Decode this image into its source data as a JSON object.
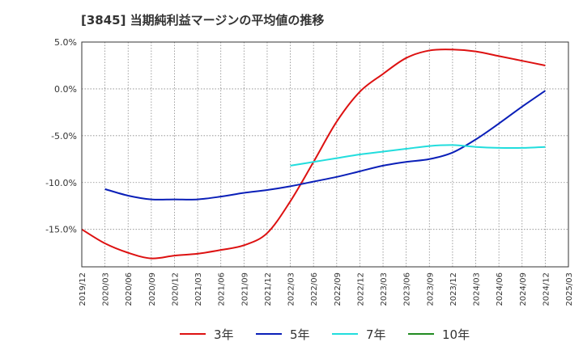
{
  "chart_data": {
    "type": "line",
    "title": "[3845]  当期純利益マージンの平均値の推移",
    "xlabel": "",
    "ylabel": "",
    "x_tick_labels": [
      "2019/12",
      "2020/03",
      "2020/06",
      "2020/09",
      "2020/12",
      "2021/03",
      "2021/06",
      "2021/09",
      "2021/12",
      "2022/03",
      "2022/06",
      "2022/09",
      "2022/12",
      "2023/03",
      "2023/06",
      "2023/09",
      "2023/12",
      "2024/03",
      "2024/06",
      "2024/09",
      "2024/12",
      "2025/03"
    ],
    "y_tick_labels": [
      "5.0%",
      "0.0%",
      "-5.0%",
      "-10.0%",
      "-15.0%"
    ],
    "y_ticks": [
      5,
      0,
      -5,
      -10,
      -15
    ],
    "ylim": [
      -19,
      5
    ],
    "grid": true,
    "legend_position": "bottom",
    "series": [
      {
        "name": "3年",
        "color": "#dd1111",
        "x": [
          "2019/12",
          "2020/03",
          "2020/06",
          "2020/09",
          "2020/12",
          "2021/03",
          "2021/06",
          "2021/09",
          "2021/12",
          "2022/03",
          "2022/06",
          "2022/09",
          "2022/12",
          "2023/03",
          "2023/06",
          "2023/09",
          "2023/12",
          "2024/03",
          "2024/06",
          "2024/09",
          "2024/12"
        ],
        "values": [
          -15.0,
          -16.5,
          -17.5,
          -18.1,
          -17.8,
          -17.6,
          -17.2,
          -16.7,
          -15.4,
          -12.0,
          -7.8,
          -3.5,
          -0.3,
          1.6,
          3.3,
          4.1,
          4.2,
          4.0,
          3.5,
          3.0,
          2.5
        ]
      },
      {
        "name": "5年",
        "color": "#0a1fb8",
        "x": [
          "2020/03",
          "2020/06",
          "2020/09",
          "2020/12",
          "2021/03",
          "2021/06",
          "2021/09",
          "2021/12",
          "2022/03",
          "2022/06",
          "2022/09",
          "2022/12",
          "2023/03",
          "2023/06",
          "2023/09",
          "2023/12",
          "2024/03",
          "2024/06",
          "2024/09",
          "2024/12"
        ],
        "values": [
          -10.7,
          -11.4,
          -11.8,
          -11.8,
          -11.8,
          -11.5,
          -11.1,
          -10.8,
          -10.4,
          -9.9,
          -9.4,
          -8.8,
          -8.2,
          -7.8,
          -7.5,
          -6.8,
          -5.4,
          -3.7,
          -1.9,
          -0.2
        ]
      },
      {
        "name": "7年",
        "color": "#22dddd",
        "x": [
          "2022/03",
          "2022/06",
          "2022/09",
          "2022/12",
          "2023/03",
          "2023/06",
          "2023/09",
          "2023/12",
          "2024/03",
          "2024/06",
          "2024/09",
          "2024/12"
        ],
        "values": [
          -8.2,
          -7.8,
          -7.4,
          -7.0,
          -6.7,
          -6.4,
          -6.1,
          -6.0,
          -6.2,
          -6.3,
          -6.3,
          -6.2
        ]
      },
      {
        "name": "10年",
        "color": "#228b22",
        "x": [],
        "values": []
      }
    ]
  }
}
